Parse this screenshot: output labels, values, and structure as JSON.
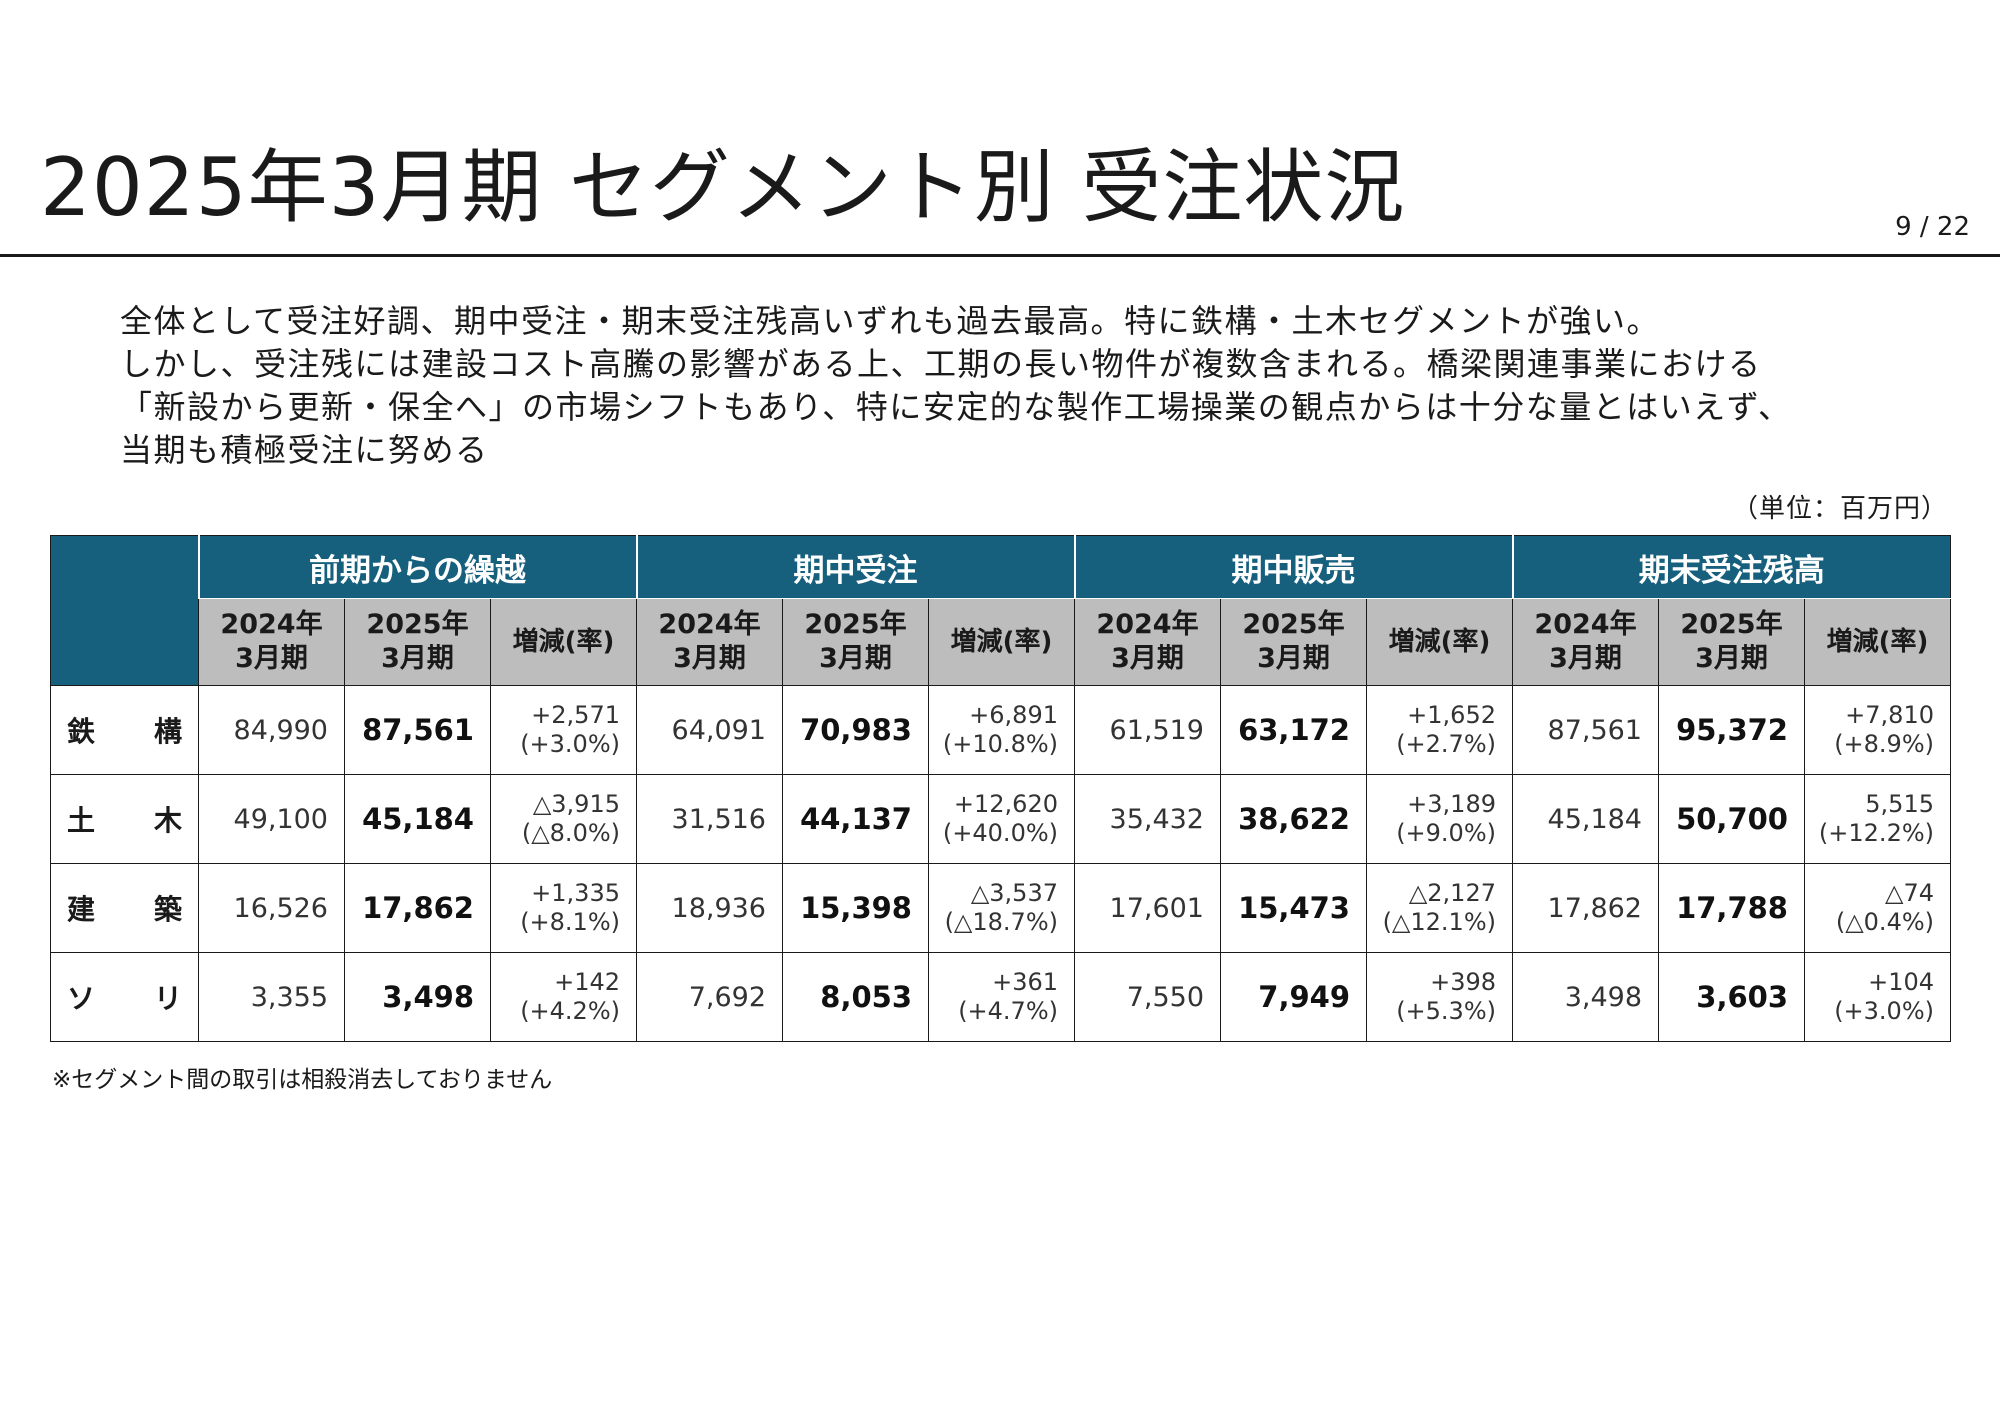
{
  "title": "2025年3月期 セグメント別 受注状況",
  "page_number": "9 / 22",
  "summary": [
    "全体として受注好調、期中受注・期末受注残高いずれも過去最高。特に鉄構・土木セグメントが強い。",
    "しかし、受注残には建設コスト高騰の影響がある上、工期の長い物件が複数含まれる。橋梁関連事業における",
    "「新設から更新・保全へ」の市場シフトもあり、特に安定的な製作工場操業の観点からは十分な量とはいえず、",
    "当期も積極受注に努める"
  ],
  "unit": "（単位：百万円）",
  "table": {
    "groups": [
      "前期からの繰越",
      "期中受注",
      "期中販売",
      "期末受注残高"
    ],
    "subheaders": [
      "2024年\n3月期",
      "2025年\n3月期",
      "増減(率)"
    ],
    "rows": [
      {
        "label": [
          "鉄",
          "構"
        ],
        "cells": [
          {
            "prev": "84,990",
            "curr": "87,561",
            "chg": "+2,571",
            "rate": "(+3.0%)"
          },
          {
            "prev": "64,091",
            "curr": "70,983",
            "chg": "+6,891",
            "rate": "(+10.8%)"
          },
          {
            "prev": "61,519",
            "curr": "63,172",
            "chg": "+1,652",
            "rate": "(+2.7%)"
          },
          {
            "prev": "87,561",
            "curr": "95,372",
            "chg": "+7,810",
            "rate": "(+8.9%)"
          }
        ]
      },
      {
        "label": [
          "土",
          "木"
        ],
        "cells": [
          {
            "prev": "49,100",
            "curr": "45,184",
            "chg": "△3,915",
            "rate": "(△8.0%)"
          },
          {
            "prev": "31,516",
            "curr": "44,137",
            "chg": "+12,620",
            "rate": "(+40.0%)"
          },
          {
            "prev": "35,432",
            "curr": "38,622",
            "chg": "+3,189",
            "rate": "(+9.0%)"
          },
          {
            "prev": "45,184",
            "curr": "50,700",
            "chg": "5,515",
            "rate": "(+12.2%)"
          }
        ]
      },
      {
        "label": [
          "建",
          "築"
        ],
        "cells": [
          {
            "prev": "16,526",
            "curr": "17,862",
            "chg": "+1,335",
            "rate": "(+8.1%)"
          },
          {
            "prev": "18,936",
            "curr": "15,398",
            "chg": "△3,537",
            "rate": "(△18.7%)"
          },
          {
            "prev": "17,601",
            "curr": "15,473",
            "chg": "△2,127",
            "rate": "(△12.1%)"
          },
          {
            "prev": "17,862",
            "curr": "17,788",
            "chg": "△74",
            "rate": "(△0.4%)"
          }
        ]
      },
      {
        "label": [
          "ソ",
          "リ"
        ],
        "cells": [
          {
            "prev": "3,355",
            "curr": "3,498",
            "chg": "+142",
            "rate": "(+4.2%)"
          },
          {
            "prev": "7,692",
            "curr": "8,053",
            "chg": "+361",
            "rate": "(+4.7%)"
          },
          {
            "prev": "7,550",
            "curr": "7,949",
            "chg": "+398",
            "rate": "(+5.3%)"
          },
          {
            "prev": "3,498",
            "curr": "3,603",
            "chg": "+104",
            "rate": "(+3.0%)"
          }
        ]
      }
    ]
  },
  "footnote": "※セグメント間の取引は相殺消去しておりません",
  "colors": {
    "group_header_bg": "#16607e",
    "sub_header_bg": "#bdbdbd"
  }
}
